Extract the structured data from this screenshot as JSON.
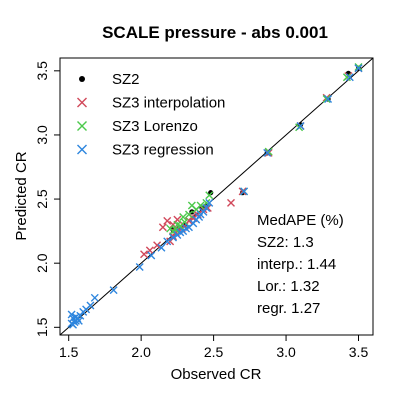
{
  "chart_data": {
    "type": "scatter",
    "title": "SCALE pressure  -  abs 0.001",
    "xlabel": "Observed CR",
    "ylabel": "Predicted CR",
    "xlim": [
      1.44,
      3.6
    ],
    "ylim": [
      1.44,
      3.6
    ],
    "xticks": [
      1.5,
      2.0,
      2.5,
      3.0,
      3.5
    ],
    "yticks": [
      1.5,
      2.0,
      2.5,
      3.0,
      3.5
    ],
    "xtick_labels": [
      "1.5",
      "2.0",
      "2.5",
      "3.0",
      "3.5"
    ],
    "ytick_labels": [
      "1.5",
      "2.0",
      "2.5",
      "3.0",
      "3.5"
    ],
    "grid": false,
    "reference_line": "y = x",
    "legend_position": "top-left",
    "series": [
      {
        "name": "SZ2",
        "marker": "dot",
        "color": "#000000",
        "points": [
          [
            3.5,
            3.52
          ],
          [
            3.43,
            3.48
          ],
          [
            3.29,
            3.28
          ],
          [
            3.1,
            3.08
          ],
          [
            2.87,
            2.86
          ],
          [
            2.7,
            2.55
          ],
          [
            2.48,
            2.55
          ],
          [
            2.42,
            2.43
          ],
          [
            2.35,
            2.4
          ],
          [
            2.3,
            2.3
          ],
          [
            2.26,
            2.27
          ],
          [
            2.22,
            2.26
          ],
          [
            2.45,
            2.45
          ]
        ]
      },
      {
        "name": "SZ3 interpolation",
        "marker": "x",
        "color": "#d1495b",
        "points": [
          [
            3.5,
            3.52
          ],
          [
            3.43,
            3.46
          ],
          [
            3.28,
            3.29
          ],
          [
            3.1,
            3.07
          ],
          [
            2.88,
            2.86
          ],
          [
            2.7,
            2.56
          ],
          [
            2.62,
            2.47
          ],
          [
            2.46,
            2.43
          ],
          [
            2.43,
            2.42
          ],
          [
            2.39,
            2.38
          ],
          [
            2.36,
            2.35
          ],
          [
            2.33,
            2.33
          ],
          [
            2.3,
            2.29
          ],
          [
            2.28,
            2.27
          ],
          [
            2.26,
            2.26
          ],
          [
            2.24,
            2.24
          ],
          [
            2.22,
            2.21
          ],
          [
            2.2,
            2.17
          ],
          [
            2.18,
            2.33
          ],
          [
            2.15,
            2.28
          ],
          [
            2.11,
            2.14
          ],
          [
            2.06,
            2.1
          ],
          [
            2.02,
            2.07
          ],
          [
            2.22,
            2.3
          ],
          [
            2.25,
            2.34
          ],
          [
            2.35,
            2.36
          ]
        ]
      },
      {
        "name": "SZ3 Lorenzo",
        "marker": "x",
        "color": "#4cc94c",
        "points": [
          [
            3.5,
            3.53
          ],
          [
            3.42,
            3.45
          ],
          [
            3.28,
            3.28
          ],
          [
            3.09,
            3.06
          ],
          [
            2.88,
            2.87
          ],
          [
            2.71,
            2.56
          ],
          [
            2.47,
            2.53
          ],
          [
            2.45,
            2.47
          ],
          [
            2.41,
            2.45
          ],
          [
            2.38,
            2.42
          ],
          [
            2.35,
            2.45
          ],
          [
            2.33,
            2.38
          ],
          [
            2.3,
            2.32
          ],
          [
            2.27,
            2.29
          ],
          [
            2.24,
            2.26
          ],
          [
            2.22,
            2.25
          ],
          [
            2.2,
            2.27
          ],
          [
            2.25,
            2.3
          ],
          [
            2.29,
            2.36
          ]
        ]
      },
      {
        "name": "SZ3 regression",
        "marker": "x",
        "color": "#2e86de",
        "points": [
          [
            3.5,
            3.52
          ],
          [
            3.44,
            3.45
          ],
          [
            3.29,
            3.28
          ],
          [
            3.1,
            3.07
          ],
          [
            2.87,
            2.86
          ],
          [
            2.71,
            2.56
          ],
          [
            2.47,
            2.47
          ],
          [
            2.45,
            2.43
          ],
          [
            2.43,
            2.4
          ],
          [
            2.41,
            2.38
          ],
          [
            2.4,
            2.36
          ],
          [
            2.38,
            2.34
          ],
          [
            2.36,
            2.31
          ],
          [
            2.33,
            2.28
          ],
          [
            2.31,
            2.27
          ],
          [
            2.29,
            2.25
          ],
          [
            2.27,
            2.24
          ],
          [
            2.25,
            2.22
          ],
          [
            2.22,
            2.2
          ],
          [
            2.18,
            2.17
          ],
          [
            2.14,
            2.12
          ],
          [
            2.07,
            2.06
          ],
          [
            1.99,
            1.97
          ],
          [
            1.81,
            1.79
          ],
          [
            1.68,
            1.73
          ],
          [
            1.65,
            1.67
          ],
          [
            1.62,
            1.64
          ],
          [
            1.6,
            1.62
          ],
          [
            1.58,
            1.59
          ],
          [
            1.56,
            1.57
          ],
          [
            1.55,
            1.55
          ],
          [
            1.54,
            1.54
          ],
          [
            1.53,
            1.52
          ],
          [
            1.52,
            1.53
          ],
          [
            1.52,
            1.6
          ],
          [
            1.55,
            1.58
          ],
          [
            1.57,
            1.55
          ],
          [
            1.53,
            1.57
          ]
        ]
      }
    ],
    "annotation": {
      "title": "MedAPE (%)",
      "lines": [
        "SZ2: 1.3",
        "interp.: 1.44",
        "Lor.: 1.32",
        "regr. 1.27"
      ]
    }
  }
}
